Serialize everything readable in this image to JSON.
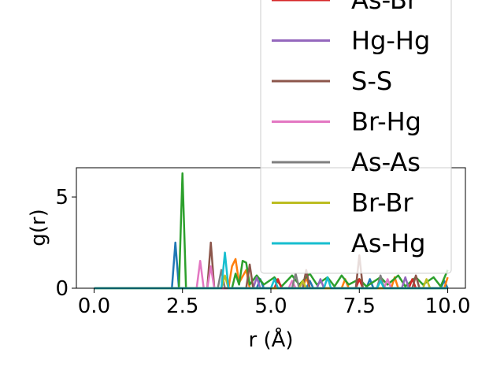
{
  "chart_data": {
    "type": "line",
    "xlabel": "r (Å)",
    "ylabel": "g(r)",
    "xlim": [
      -0.5,
      10.5
    ],
    "ylim": [
      0,
      6.6
    ],
    "x_ticks": [
      0.0,
      2.5,
      5.0,
      7.5,
      10.0
    ],
    "x_tick_labels": [
      "0.0",
      "2.5",
      "5.0",
      "7.5",
      "10.0"
    ],
    "y_ticks": [
      0,
      5
    ],
    "y_tick_labels": [
      "0",
      "5"
    ],
    "grid": false,
    "legend_position": "upper-right (overflowing above the axes)",
    "series": [
      {
        "name": "",
        "color": "#1f77b4",
        "points": [
          [
            0,
            0
          ],
          [
            2.2,
            0
          ],
          [
            2.3,
            2.5
          ],
          [
            2.4,
            0
          ],
          [
            4.6,
            0
          ],
          [
            4.7,
            0.5
          ],
          [
            4.8,
            0
          ],
          [
            6.0,
            0
          ],
          [
            6.1,
            0.4
          ],
          [
            6.2,
            0
          ],
          [
            7.7,
            0
          ],
          [
            7.8,
            0.5
          ],
          [
            7.9,
            0
          ],
          [
            9.8,
            0
          ],
          [
            9.9,
            0.4
          ],
          [
            10,
            0
          ]
        ]
      },
      {
        "name": "",
        "color": "#ff7f0e",
        "points": [
          [
            0,
            0
          ],
          [
            3.8,
            0
          ],
          [
            3.9,
            1.2
          ],
          [
            4.0,
            1.6
          ],
          [
            4.1,
            0.3
          ],
          [
            4.3,
            1.0
          ],
          [
            4.4,
            0
          ],
          [
            5.9,
            0
          ],
          [
            6.0,
            0.6
          ],
          [
            6.1,
            0
          ],
          [
            7.0,
            0
          ],
          [
            7.1,
            0.5
          ],
          [
            7.2,
            0
          ],
          [
            8.4,
            0
          ],
          [
            8.5,
            0.6
          ],
          [
            8.6,
            0
          ],
          [
            9.9,
            0
          ],
          [
            10,
            0.6
          ]
        ]
      },
      {
        "name": "",
        "color": "#2ca02c",
        "points": [
          [
            0,
            0
          ],
          [
            2.4,
            0
          ],
          [
            2.5,
            6.3
          ],
          [
            2.6,
            0
          ],
          [
            3.9,
            0
          ],
          [
            4.0,
            0.8
          ],
          [
            4.1,
            0.2
          ],
          [
            4.2,
            1.5
          ],
          [
            4.3,
            1.4
          ],
          [
            4.4,
            0.2
          ],
          [
            4.6,
            0.7
          ],
          [
            4.8,
            0.2
          ],
          [
            5.1,
            0.6
          ],
          [
            5.3,
            0.1
          ],
          [
            5.6,
            0.7
          ],
          [
            5.8,
            0.2
          ],
          [
            6.1,
            0.8
          ],
          [
            6.3,
            0.2
          ],
          [
            6.6,
            0.6
          ],
          [
            6.8,
            0.1
          ],
          [
            7.0,
            0.7
          ],
          [
            7.2,
            0.2
          ],
          [
            7.5,
            0.5
          ],
          [
            7.7,
            0.1
          ],
          [
            8.1,
            0.6
          ],
          [
            8.3,
            0.2
          ],
          [
            8.6,
            0.7
          ],
          [
            8.8,
            0.1
          ],
          [
            9.1,
            0.6
          ],
          [
            9.3,
            0.2
          ],
          [
            9.6,
            0.6
          ],
          [
            9.8,
            0.1
          ],
          [
            10,
            1.0
          ]
        ]
      },
      {
        "name": "As-Br",
        "color": "#d62728",
        "points": [
          [
            0,
            0
          ],
          [
            5.1,
            0
          ],
          [
            5.2,
            0.5
          ],
          [
            5.3,
            0
          ],
          [
            7.4,
            0
          ],
          [
            7.5,
            0.5
          ],
          [
            7.6,
            0
          ],
          [
            8.9,
            0
          ],
          [
            9.0,
            0.5
          ],
          [
            9.1,
            0
          ],
          [
            10,
            0
          ]
        ]
      },
      {
        "name": "Hg-Hg",
        "color": "#9467bd",
        "points": [
          [
            0,
            0
          ],
          [
            4.5,
            0
          ],
          [
            4.6,
            0.6
          ],
          [
            4.7,
            0
          ],
          [
            6.3,
            0
          ],
          [
            6.4,
            0.5
          ],
          [
            6.5,
            0
          ],
          [
            8.7,
            0
          ],
          [
            8.8,
            0.6
          ],
          [
            8.9,
            0
          ],
          [
            10,
            0
          ]
        ]
      },
      {
        "name": "S-S",
        "color": "#8c564b",
        "points": [
          [
            0,
            0
          ],
          [
            3.2,
            0
          ],
          [
            3.3,
            2.5
          ],
          [
            3.4,
            0
          ],
          [
            4.3,
            0
          ],
          [
            4.4,
            1.3
          ],
          [
            4.5,
            0
          ],
          [
            5.9,
            0
          ],
          [
            6.0,
            1.0
          ],
          [
            6.1,
            0
          ],
          [
            7.4,
            0
          ],
          [
            7.5,
            1.8
          ],
          [
            7.6,
            0
          ],
          [
            9.0,
            0
          ],
          [
            9.1,
            0.7
          ],
          [
            9.2,
            0
          ],
          [
            10,
            0
          ]
        ]
      },
      {
        "name": "Br-Hg",
        "color": "#e377c2",
        "points": [
          [
            0,
            0
          ],
          [
            2.9,
            0
          ],
          [
            3.0,
            1.5
          ],
          [
            3.1,
            0
          ],
          [
            3.2,
            0
          ],
          [
            3.3,
            1.2
          ],
          [
            3.4,
            0
          ],
          [
            5.5,
            0
          ],
          [
            5.6,
            0.4
          ],
          [
            5.7,
            0
          ],
          [
            8.2,
            0
          ],
          [
            8.3,
            0.5
          ],
          [
            8.4,
            0
          ],
          [
            10,
            0
          ]
        ]
      },
      {
        "name": "As-As",
        "color": "#7f7f7f",
        "points": [
          [
            0,
            0
          ],
          [
            3.5,
            0
          ],
          [
            3.6,
            1.0
          ],
          [
            3.7,
            0
          ],
          [
            5.6,
            0
          ],
          [
            5.7,
            0.8
          ],
          [
            5.8,
            0
          ],
          [
            8.0,
            0
          ],
          [
            8.1,
            0.7
          ],
          [
            8.2,
            0
          ],
          [
            10,
            0
          ]
        ]
      },
      {
        "name": "Br-Br",
        "color": "#bcbd22",
        "points": [
          [
            0,
            0
          ],
          [
            3.6,
            0
          ],
          [
            3.7,
            0.7
          ],
          [
            3.8,
            0
          ],
          [
            5.8,
            0
          ],
          [
            5.9,
            0.4
          ],
          [
            6.0,
            0
          ],
          [
            9.3,
            0
          ],
          [
            9.4,
            0.5
          ],
          [
            9.5,
            0
          ],
          [
            10,
            0
          ]
        ]
      },
      {
        "name": "As-Hg",
        "color": "#17becf",
        "points": [
          [
            0,
            0
          ],
          [
            3.6,
            0
          ],
          [
            3.7,
            1.95
          ],
          [
            3.8,
            0
          ],
          [
            5.0,
            0
          ],
          [
            5.1,
            0.5
          ],
          [
            5.2,
            0
          ],
          [
            6.5,
            0
          ],
          [
            6.6,
            0.6
          ],
          [
            6.7,
            0
          ],
          [
            8.0,
            0
          ],
          [
            8.1,
            0.4
          ],
          [
            8.2,
            0
          ],
          [
            10,
            0
          ]
        ]
      }
    ]
  }
}
